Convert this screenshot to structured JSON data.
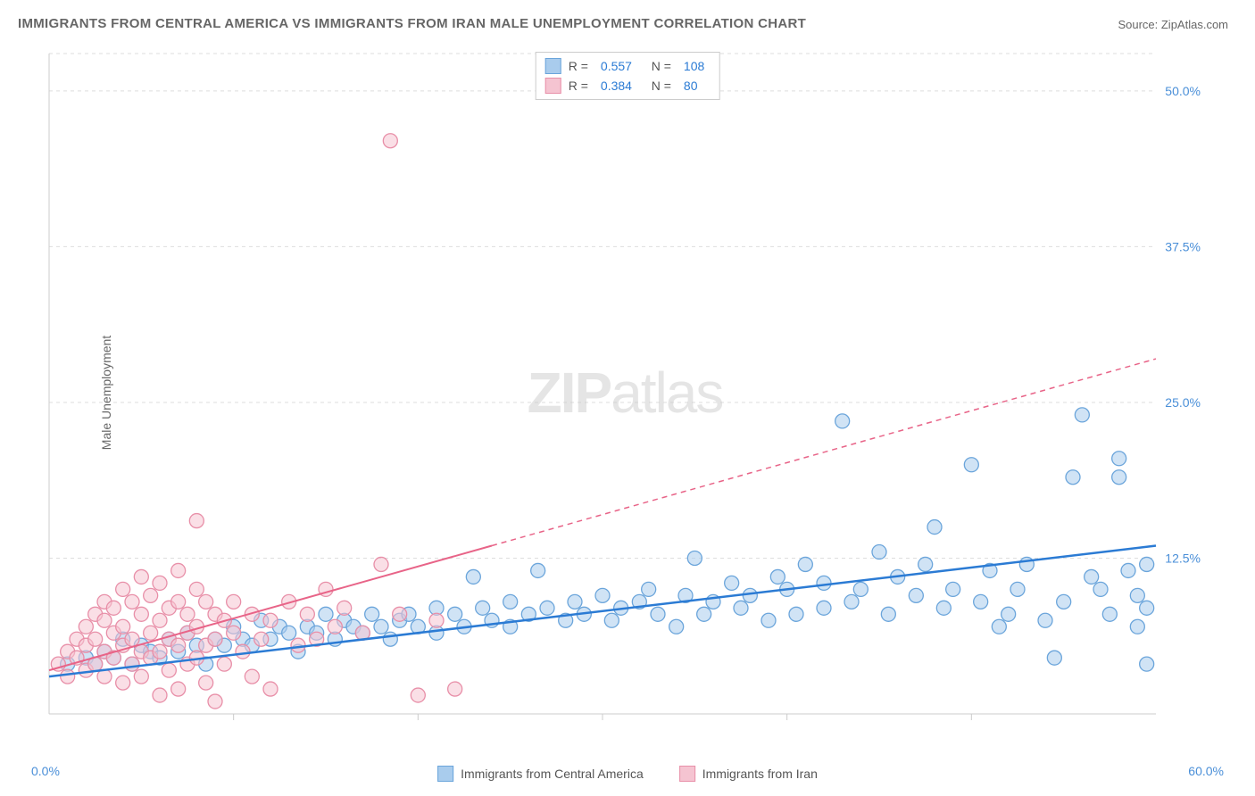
{
  "title": "IMMIGRANTS FROM CENTRAL AMERICA VS IMMIGRANTS FROM IRAN MALE UNEMPLOYMENT CORRELATION CHART",
  "source": "Source: ZipAtlas.com",
  "ylabel": "Male Unemployment",
  "watermark_bold": "ZIP",
  "watermark_rest": "atlas",
  "chart": {
    "type": "scatter",
    "xlim": [
      0,
      60
    ],
    "ylim": [
      0,
      53
    ],
    "background_color": "#ffffff",
    "grid_color": "#dddddd",
    "grid_dashed": true,
    "axis_color": "#cccccc",
    "y_ticks": [
      12.5,
      25.0,
      37.5,
      50.0
    ],
    "y_tick_labels": [
      "12.5%",
      "25.0%",
      "37.5%",
      "50.0%"
    ],
    "x_ticks": [
      0,
      60
    ],
    "x_tick_labels": [
      "0.0%",
      "60.0%"
    ],
    "x_minor_tick_positions": [
      10,
      20,
      30,
      40,
      50
    ],
    "axis_label_color": "#4a8fd8",
    "axis_label_fontsize": 14
  },
  "series": [
    {
      "name": "Immigrants from Central America",
      "r": "0.557",
      "n": "108",
      "marker_fill": "#a9cced",
      "marker_stroke": "#6ba5db",
      "marker_radius": 8,
      "trend_color": "#2b7bd4",
      "trend_width": 2.5,
      "trend_solid_end": 60,
      "trend_start_y": 3.0,
      "trend_end_y": 13.5,
      "points": [
        [
          1,
          4
        ],
        [
          2,
          4.5
        ],
        [
          2.5,
          4
        ],
        [
          3,
          5
        ],
        [
          3.5,
          4.5
        ],
        [
          4,
          6
        ],
        [
          4.5,
          4
        ],
        [
          5,
          5.5
        ],
        [
          5.5,
          5
        ],
        [
          6,
          4.5
        ],
        [
          6.5,
          6
        ],
        [
          7,
          5
        ],
        [
          7.5,
          6.5
        ],
        [
          8,
          5.5
        ],
        [
          8.5,
          4
        ],
        [
          9,
          6
        ],
        [
          9.5,
          5.5
        ],
        [
          10,
          7
        ],
        [
          10.5,
          6
        ],
        [
          11,
          5.5
        ],
        [
          11.5,
          7.5
        ],
        [
          12,
          6
        ],
        [
          12.5,
          7
        ],
        [
          13,
          6.5
        ],
        [
          13.5,
          5
        ],
        [
          14,
          7
        ],
        [
          14.5,
          6.5
        ],
        [
          15,
          8
        ],
        [
          15.5,
          6
        ],
        [
          16,
          7.5
        ],
        [
          16.5,
          7
        ],
        [
          17,
          6.5
        ],
        [
          17.5,
          8
        ],
        [
          18,
          7
        ],
        [
          18.5,
          6
        ],
        [
          19,
          7.5
        ],
        [
          19.5,
          8
        ],
        [
          20,
          7
        ],
        [
          21,
          8.5
        ],
        [
          21,
          6.5
        ],
        [
          22,
          8
        ],
        [
          22.5,
          7
        ],
        [
          23,
          11
        ],
        [
          23.5,
          8.5
        ],
        [
          24,
          7.5
        ],
        [
          25,
          9
        ],
        [
          25,
          7
        ],
        [
          26,
          8
        ],
        [
          26.5,
          11.5
        ],
        [
          27,
          8.5
        ],
        [
          28,
          7.5
        ],
        [
          28.5,
          9
        ],
        [
          29,
          8
        ],
        [
          30,
          9.5
        ],
        [
          30.5,
          7.5
        ],
        [
          31,
          8.5
        ],
        [
          32,
          9
        ],
        [
          32.5,
          10
        ],
        [
          33,
          8
        ],
        [
          34,
          7
        ],
        [
          34.5,
          9.5
        ],
        [
          35,
          12.5
        ],
        [
          35.5,
          8
        ],
        [
          36,
          9
        ],
        [
          37,
          10.5
        ],
        [
          37.5,
          8.5
        ],
        [
          38,
          9.5
        ],
        [
          39,
          7.5
        ],
        [
          39.5,
          11
        ],
        [
          40,
          10
        ],
        [
          40.5,
          8
        ],
        [
          41,
          12
        ],
        [
          42,
          10.5
        ],
        [
          42,
          8.5
        ],
        [
          43,
          23.5
        ],
        [
          43.5,
          9
        ],
        [
          44,
          10
        ],
        [
          45,
          13
        ],
        [
          45.5,
          8
        ],
        [
          46,
          11
        ],
        [
          47,
          9.5
        ],
        [
          47.5,
          12
        ],
        [
          48,
          15
        ],
        [
          48.5,
          8.5
        ],
        [
          49,
          10
        ],
        [
          50,
          20
        ],
        [
          50.5,
          9
        ],
        [
          51,
          11.5
        ],
        [
          51.5,
          7
        ],
        [
          52,
          8
        ],
        [
          52.5,
          10
        ],
        [
          53,
          12
        ],
        [
          54,
          7.5
        ],
        [
          54.5,
          4.5
        ],
        [
          55,
          9
        ],
        [
          55.5,
          19
        ],
        [
          56,
          24
        ],
        [
          56.5,
          11
        ],
        [
          57,
          10
        ],
        [
          57.5,
          8
        ],
        [
          58,
          20.5
        ],
        [
          58,
          19
        ],
        [
          58.5,
          11.5
        ],
        [
          59,
          9.5
        ],
        [
          59,
          7
        ],
        [
          59.5,
          4
        ],
        [
          59.5,
          8.5
        ],
        [
          59.5,
          12
        ]
      ]
    },
    {
      "name": "Immigrants from Iran",
      "r": "0.384",
      "n": "80",
      "marker_fill": "#f5c4d1",
      "marker_stroke": "#e88fa8",
      "marker_radius": 8,
      "trend_color": "#e86488",
      "trend_width": 2,
      "trend_solid_end": 24,
      "trend_start_y": 3.5,
      "trend_end_y": 28.5,
      "points": [
        [
          0.5,
          4
        ],
        [
          1,
          5
        ],
        [
          1,
          3
        ],
        [
          1.5,
          6
        ],
        [
          1.5,
          4.5
        ],
        [
          2,
          7
        ],
        [
          2,
          5.5
        ],
        [
          2,
          3.5
        ],
        [
          2.5,
          8
        ],
        [
          2.5,
          6
        ],
        [
          2.5,
          4
        ],
        [
          3,
          9
        ],
        [
          3,
          7.5
        ],
        [
          3,
          5
        ],
        [
          3,
          3
        ],
        [
          3.5,
          8.5
        ],
        [
          3.5,
          6.5
        ],
        [
          3.5,
          4.5
        ],
        [
          4,
          10
        ],
        [
          4,
          7
        ],
        [
          4,
          5.5
        ],
        [
          4,
          2.5
        ],
        [
          4.5,
          9
        ],
        [
          4.5,
          6
        ],
        [
          4.5,
          4
        ],
        [
          5,
          11
        ],
        [
          5,
          8
        ],
        [
          5,
          5
        ],
        [
          5,
          3
        ],
        [
          5.5,
          9.5
        ],
        [
          5.5,
          6.5
        ],
        [
          5.5,
          4.5
        ],
        [
          6,
          10.5
        ],
        [
          6,
          7.5
        ],
        [
          6,
          5
        ],
        [
          6,
          1.5
        ],
        [
          6.5,
          8.5
        ],
        [
          6.5,
          6
        ],
        [
          6.5,
          3.5
        ],
        [
          7,
          11.5
        ],
        [
          7,
          9
        ],
        [
          7,
          5.5
        ],
        [
          7,
          2
        ],
        [
          7.5,
          8
        ],
        [
          7.5,
          6.5
        ],
        [
          7.5,
          4
        ],
        [
          8,
          15.5
        ],
        [
          8,
          10
        ],
        [
          8,
          7
        ],
        [
          8,
          4.5
        ],
        [
          8.5,
          9
        ],
        [
          8.5,
          5.5
        ],
        [
          8.5,
          2.5
        ],
        [
          9,
          8
        ],
        [
          9,
          6
        ],
        [
          9,
          1
        ],
        [
          9.5,
          7.5
        ],
        [
          9.5,
          4
        ],
        [
          10,
          9
        ],
        [
          10,
          6.5
        ],
        [
          10.5,
          5
        ],
        [
          11,
          8
        ],
        [
          11,
          3
        ],
        [
          11.5,
          6
        ],
        [
          12,
          7.5
        ],
        [
          12,
          2
        ],
        [
          13,
          9
        ],
        [
          13.5,
          5.5
        ],
        [
          14,
          8
        ],
        [
          14.5,
          6
        ],
        [
          15,
          10
        ],
        [
          15.5,
          7
        ],
        [
          16,
          8.5
        ],
        [
          17,
          6.5
        ],
        [
          18,
          12
        ],
        [
          18.5,
          46
        ],
        [
          19,
          8
        ],
        [
          20,
          1.5
        ],
        [
          21,
          7.5
        ],
        [
          22,
          2
        ]
      ]
    }
  ],
  "legend_bottom": [
    {
      "label": "Immigrants from Central America",
      "fill": "#a9cced",
      "stroke": "#6ba5db"
    },
    {
      "label": "Immigrants from Iran",
      "fill": "#f5c4d1",
      "stroke": "#e88fa8"
    }
  ]
}
